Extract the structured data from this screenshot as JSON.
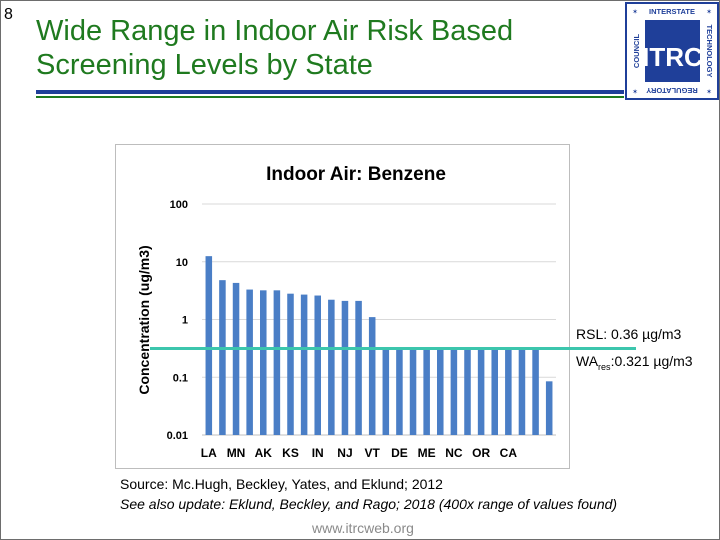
{
  "slide": {
    "number": "8",
    "title_line1": "Wide Range in Indoor Air Risk Based",
    "title_line2": "Screening Levels by State",
    "source": "Source: Mc.Hugh, Beckley, Yates, and Eklund; 2012",
    "update": "See also update: Eklund, Beckley, and Rago; 2018 (400x range of values found)",
    "url": "www.itrcweb.org"
  },
  "logo": {
    "text_main": "ITRC",
    "text_top": "INTERSTATE",
    "text_left": "COUNCIL",
    "text_right": "TECHNOLOGY",
    "text_bottom": "REGULATORY"
  },
  "annotations": {
    "rsl": "RSL: 0.36 µg/m3",
    "wa_prefix": "WA",
    "wa_sub": "res",
    "wa_suffix": ":0.321 µg/m3"
  },
  "colors": {
    "title_green": "#1f7a1f",
    "rule_blue": "#1f3f99",
    "bar_blue": "#4a7ec6",
    "rsl_teal": "#3cc6ad"
  },
  "chart_data": {
    "type": "bar",
    "title": "Indoor Air: Benzene",
    "ylabel": "Concentration (ug/m3)",
    "y_scale": "log",
    "ylim": [
      0.01,
      100
    ],
    "y_ticks": [
      "100",
      "10",
      "1",
      "0.1",
      "0.01"
    ],
    "grid": "horizontal",
    "x_tick_labels": [
      "LA",
      "MN",
      "AK",
      "KS",
      "IN",
      "NJ",
      "VT",
      "DE",
      "ME",
      "NC",
      "OR",
      "CA"
    ],
    "values": [
      12.5,
      4.8,
      4.3,
      3.3,
      3.2,
      3.2,
      2.8,
      2.7,
      2.6,
      2.2,
      2.1,
      2.1,
      1.1,
      0.31,
      0.31,
      0.31,
      0.31,
      0.31,
      0.31,
      0.31,
      0.31,
      0.31,
      0.31,
      0.31,
      0.31,
      0.085
    ],
    "reference_lines": [
      {
        "label": "RSL",
        "value": 0.36
      }
    ]
  }
}
